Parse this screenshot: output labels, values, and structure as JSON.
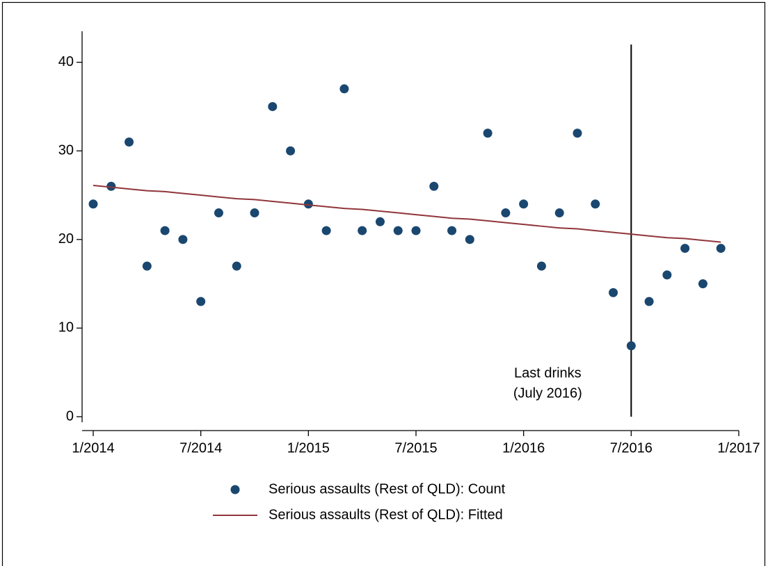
{
  "chart_data": {
    "type": "scatter",
    "x": [
      "2014-01",
      "2014-02",
      "2014-03",
      "2014-04",
      "2014-05",
      "2014-06",
      "2014-07",
      "2014-08",
      "2014-09",
      "2014-10",
      "2014-11",
      "2014-12",
      "2015-01",
      "2015-02",
      "2015-03",
      "2015-04",
      "2015-05",
      "2015-06",
      "2015-07",
      "2015-08",
      "2015-09",
      "2015-10",
      "2015-11",
      "2015-12",
      "2016-01",
      "2016-02",
      "2016-03",
      "2016-04",
      "2016-05",
      "2016-06",
      "2016-07",
      "2016-08",
      "2016-09",
      "2016-10",
      "2016-11",
      "2016-12"
    ],
    "series": [
      {
        "name": "Serious assaults (Rest of QLD): Count",
        "color": "#1a476f",
        "mode": "markers",
        "values": [
          24,
          26,
          31,
          17,
          21,
          20,
          13,
          23,
          17,
          23,
          35,
          30,
          24,
          21,
          37,
          21,
          22,
          21,
          21,
          26,
          21,
          20,
          32,
          23,
          24,
          17,
          23,
          32,
          24,
          14,
          8,
          13,
          16,
          19,
          15,
          19
        ]
      },
      {
        "name": "Serious assaults (Rest of QLD): Fitted",
        "color": "#90353b",
        "mode": "line",
        "values": [
          26.1,
          25.9,
          25.7,
          25.5,
          25.4,
          25.2,
          25.0,
          24.8,
          24.6,
          24.5,
          24.3,
          24.1,
          23.9,
          23.7,
          23.5,
          23.4,
          23.2,
          23.0,
          22.8,
          22.6,
          22.4,
          22.3,
          22.1,
          21.9,
          21.7,
          21.5,
          21.3,
          21.2,
          21.0,
          20.8,
          20.6,
          20.4,
          20.2,
          20.1,
          19.9,
          19.7
        ]
      }
    ],
    "xlim": [
      "2014-01",
      "2017-01"
    ],
    "xticks": [
      {
        "value": "2014-01",
        "label": "1/2014"
      },
      {
        "value": "2014-07",
        "label": "7/2014"
      },
      {
        "value": "2015-01",
        "label": "1/2015"
      },
      {
        "value": "2015-07",
        "label": "7/2015"
      },
      {
        "value": "2016-01",
        "label": "1/2016"
      },
      {
        "value": "2016-07",
        "label": "7/2016"
      },
      {
        "value": "2017-01",
        "label": "1/2017"
      }
    ],
    "ylim": [
      0,
      43.5
    ],
    "yticks": [
      0,
      10,
      20,
      30,
      40
    ],
    "vline": {
      "x": "2016-07",
      "y": [
        0,
        42
      ],
      "color": "#000000",
      "annotation": [
        "Last drinks",
        "(July 2016)"
      ]
    },
    "legend": "bottom"
  }
}
